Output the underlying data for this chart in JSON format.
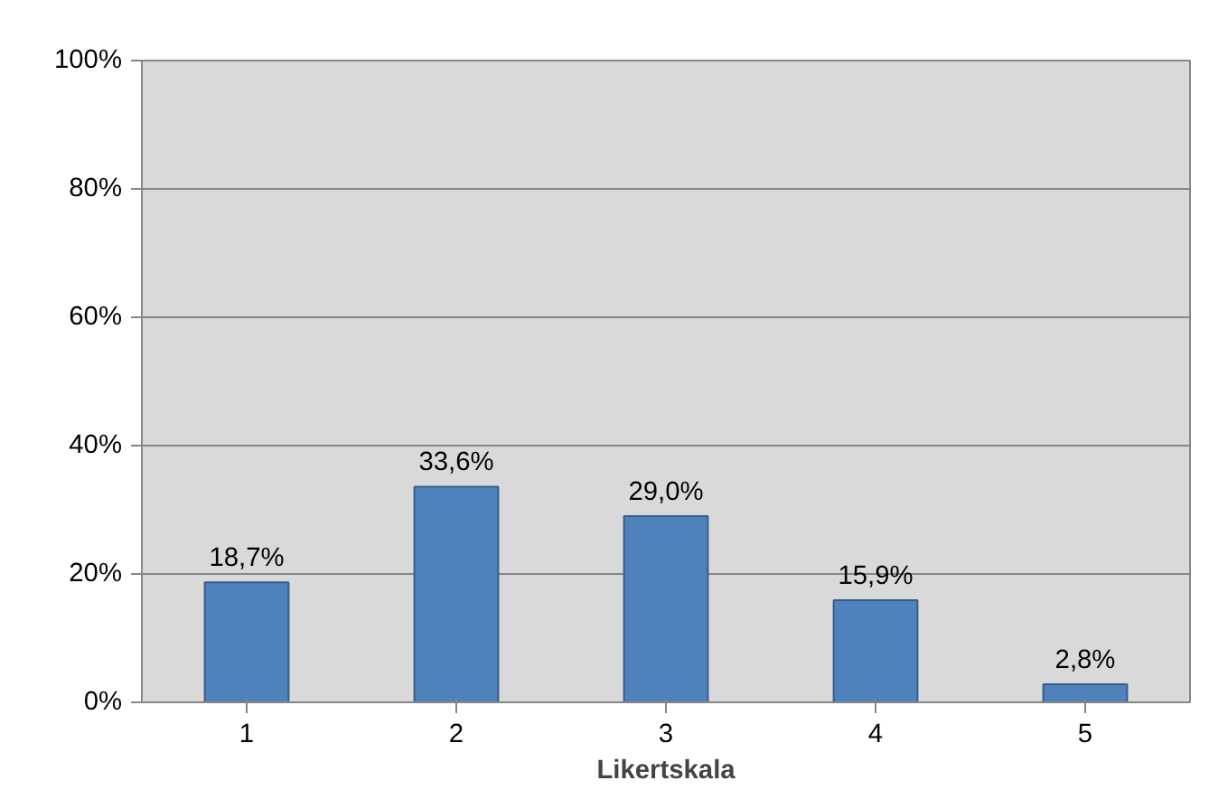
{
  "chart_data": {
    "type": "bar",
    "xlabel": "Likertskala",
    "categories": [
      "1",
      "2",
      "3",
      "4",
      "5"
    ],
    "values": [
      18.7,
      33.6,
      29.0,
      15.9,
      2.8
    ],
    "value_labels": [
      "18,7%",
      "33,6%",
      "29,0%",
      "15,9%",
      "2,8%"
    ],
    "color": "#4f81bd",
    "ylim": [
      0,
      100
    ],
    "yticks": [
      {
        "value": 0,
        "label": "0%"
      },
      {
        "value": 20,
        "label": "20%"
      },
      {
        "value": 40,
        "label": "40%"
      },
      {
        "value": 60,
        "label": "60%"
      },
      {
        "value": 80,
        "label": "80%"
      },
      {
        "value": 100,
        "label": "100%"
      }
    ],
    "grid": "y"
  }
}
